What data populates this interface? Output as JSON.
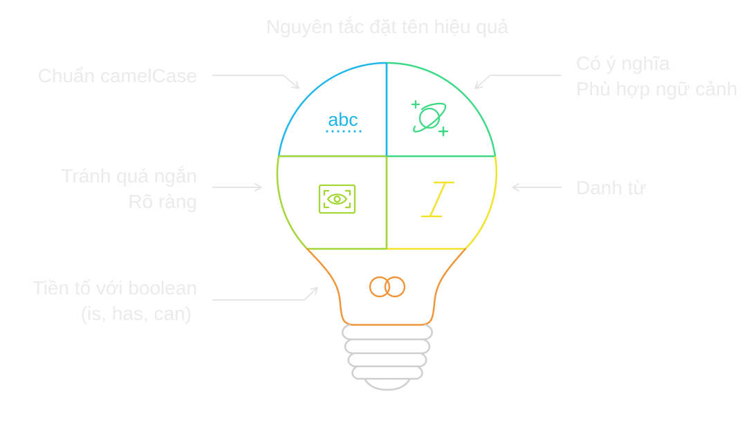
{
  "title": "Nguyên tắc đặt tên hiệu quả",
  "labels": {
    "camel": "Chuẩn camelCase",
    "meaning_1": "Có ý nghĩa",
    "meaning_2": "Phù hợp ngữ cảnh",
    "short_1": "Tránh quá ngắn",
    "short_2": "Rõ ràng",
    "noun": "Danh từ",
    "bool_1": "Tiền tố với boolean",
    "bool_2": "(is, has, can)"
  },
  "icons": {
    "abc_text": "abc",
    "camel": "abc-text-icon",
    "meaning": "planet-icon",
    "short": "eye-scan-icon",
    "noun": "italic-i-icon",
    "bool": "interlocking-rings-icon"
  },
  "colors": {
    "label_text": "#ebebeb",
    "arrow": "#e3e3e3",
    "blue": "#1fb6ea",
    "green": "#3ed986",
    "lime": "#a4d639",
    "yellow": "#f2e329",
    "orange": "#f0953a",
    "base": "#cfcfcf"
  }
}
